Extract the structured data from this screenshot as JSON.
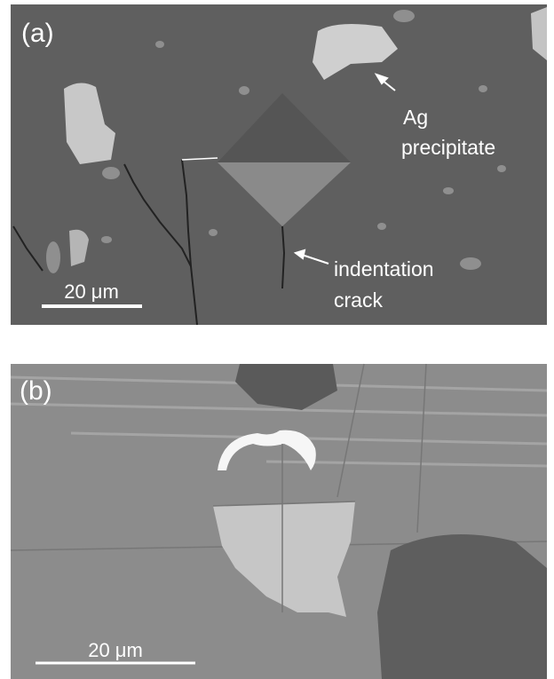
{
  "panels": [
    {
      "label": "(a)",
      "annotations": [
        {
          "lines": [
            "Ag",
            "precipitate"
          ]
        },
        {
          "lines": [
            "indentation",
            "crack"
          ]
        }
      ],
      "scale_bar": "20 μm"
    },
    {
      "label": "(b)",
      "scale_bar": "20 μm"
    }
  ]
}
